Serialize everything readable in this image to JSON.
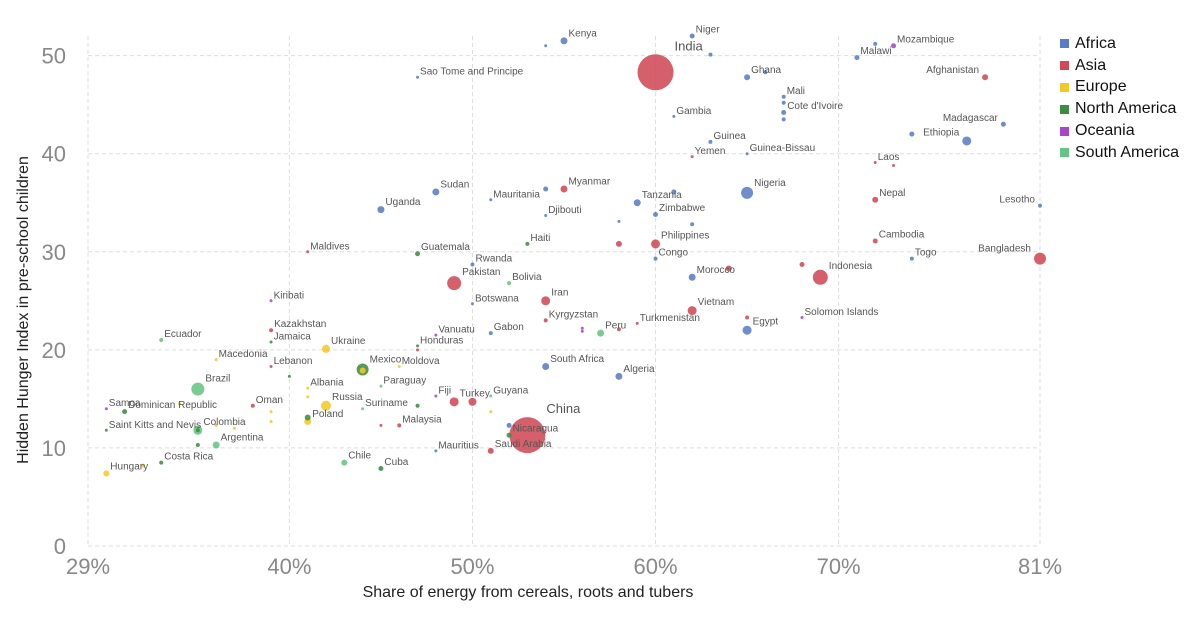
{
  "chart_data": {
    "type": "scatter",
    "xlabel": "Share of energy from cereals, roots and tubers",
    "ylabel": "Hidden Hunger Index in pre-school children",
    "xlim": [
      29,
      81
    ],
    "ylim": [
      0,
      52
    ],
    "x_ticks": [
      "29%",
      "40%",
      "50%",
      "60%",
      "70%",
      "81%"
    ],
    "x_tick_values": [
      29,
      40,
      50,
      60,
      70,
      81
    ],
    "y_ticks": [
      "0",
      "10",
      "20",
      "30",
      "40",
      "50"
    ],
    "y_tick_values": [
      0,
      10,
      20,
      30,
      40,
      50
    ],
    "grid": true,
    "legend_position": "top-right",
    "series": [
      {
        "name": "Africa",
        "color": "#5b7cc4"
      },
      {
        "name": "Asia",
        "color": "#cf4a57"
      },
      {
        "name": "Europe",
        "color": "#f5c829"
      },
      {
        "name": "North America",
        "color": "#3e8c41"
      },
      {
        "name": "Oceania",
        "color": "#a646c9"
      },
      {
        "name": "South America",
        "color": "#66c482"
      }
    ],
    "points": [
      {
        "label": "Kenya",
        "x": 55,
        "y": 51.5,
        "s": 7,
        "g": "Africa"
      },
      {
        "label": "Niger",
        "x": 62,
        "y": 52,
        "s": 5,
        "g": "Africa"
      },
      {
        "label": "",
        "x": 63,
        "y": 50.1,
        "s": 4,
        "g": "Africa"
      },
      {
        "label": "India",
        "x": 60,
        "y": 48.3,
        "s": 36,
        "g": "Asia"
      },
      {
        "label": "Malawi",
        "x": 71,
        "y": 49.8,
        "s": 5,
        "g": "Africa"
      },
      {
        "label": "",
        "x": 72,
        "y": 51.2,
        "s": 4,
        "g": "Africa"
      },
      {
        "label": "Mozambique",
        "x": 73,
        "y": 51,
        "s": 5,
        "g": "Oceania"
      },
      {
        "label": "Sao Tome and Principe",
        "x": 47,
        "y": 47.8,
        "s": 3,
        "g": "Africa"
      },
      {
        "label": "",
        "x": 54,
        "y": 51,
        "s": 3,
        "g": "Africa"
      },
      {
        "label": "Ghana",
        "x": 65,
        "y": 47.8,
        "s": 6,
        "g": "Africa"
      },
      {
        "label": "",
        "x": 66,
        "y": 48.3,
        "s": 4,
        "g": "Africa"
      },
      {
        "label": "Afghanistan",
        "x": 78,
        "y": 47.8,
        "s": 6,
        "g": "Asia"
      },
      {
        "label": "Mali",
        "x": 67,
        "y": 45.8,
        "s": 4,
        "g": "Africa"
      },
      {
        "label": "",
        "x": 67,
        "y": 45.2,
        "s": 4,
        "g": "Africa"
      },
      {
        "label": "Cote d'Ivoire",
        "x": 67,
        "y": 44.2,
        "s": 5,
        "g": "Africa"
      },
      {
        "label": "",
        "x": 67,
        "y": 43.5,
        "s": 4,
        "g": "Africa"
      },
      {
        "label": "Gambia",
        "x": 61,
        "y": 43.8,
        "s": 3,
        "g": "Africa"
      },
      {
        "label": "Madagascar",
        "x": 79,
        "y": 43,
        "s": 5,
        "g": "Africa"
      },
      {
        "label": "",
        "x": 74,
        "y": 42,
        "s": 5,
        "g": "Africa"
      },
      {
        "label": "Ethiopia",
        "x": 77,
        "y": 41.3,
        "s": 9,
        "g": "Africa"
      },
      {
        "label": "Guinea",
        "x": 63,
        "y": 41.2,
        "s": 4,
        "g": "Africa"
      },
      {
        "label": "Yemen",
        "x": 62,
        "y": 39.7,
        "s": 3,
        "g": "Asia"
      },
      {
        "label": "Guinea-Bissau",
        "x": 65,
        "y": 40,
        "s": 3,
        "g": "Africa"
      },
      {
        "label": "Laos",
        "x": 72,
        "y": 39.1,
        "s": 3,
        "g": "Asia"
      },
      {
        "label": "",
        "x": 73,
        "y": 38.8,
        "s": 3,
        "g": "Asia"
      },
      {
        "label": "Sudan",
        "x": 48,
        "y": 36.1,
        "s": 7,
        "g": "Africa"
      },
      {
        "label": "Myanmar",
        "x": 55,
        "y": 36.4,
        "s": 7,
        "g": "Asia"
      },
      {
        "label": "",
        "x": 54,
        "y": 36.4,
        "s": 5,
        "g": "Africa"
      },
      {
        "label": "Mauritania",
        "x": 51,
        "y": 35.3,
        "s": 3,
        "g": "Africa"
      },
      {
        "label": "Nigeria",
        "x": 65,
        "y": 36,
        "s": 12,
        "g": "Africa"
      },
      {
        "label": "",
        "x": 61,
        "y": 36.1,
        "s": 5,
        "g": "Africa"
      },
      {
        "label": "Tanzania",
        "x": 59,
        "y": 35,
        "s": 7,
        "g": "Africa"
      },
      {
        "label": "Uganda",
        "x": 45,
        "y": 34.3,
        "s": 7,
        "g": "Africa"
      },
      {
        "label": "Djibouti",
        "x": 54,
        "y": 33.7,
        "s": 3,
        "g": "Africa"
      },
      {
        "label": "Zimbabwe",
        "x": 60,
        "y": 33.8,
        "s": 5,
        "g": "Africa"
      },
      {
        "label": "",
        "x": 58,
        "y": 33.1,
        "s": 3,
        "g": "Africa"
      },
      {
        "label": "",
        "x": 62,
        "y": 32.8,
        "s": 4,
        "g": "Africa"
      },
      {
        "label": "Nepal",
        "x": 72,
        "y": 35.3,
        "s": 6,
        "g": "Asia"
      },
      {
        "label": "Lesotho",
        "x": 81,
        "y": 34.7,
        "s": 4,
        "g": "Africa"
      },
      {
        "label": "Haiti",
        "x": 53,
        "y": 30.8,
        "s": 4,
        "g": "North America"
      },
      {
        "label": "",
        "x": 58,
        "y": 30.8,
        "s": 6,
        "g": "Asia"
      },
      {
        "label": "Philippines",
        "x": 60,
        "y": 30.8,
        "s": 9,
        "g": "Asia"
      },
      {
        "label": "Cambodia",
        "x": 72,
        "y": 31.1,
        "s": 5,
        "g": "Asia"
      },
      {
        "label": "Maldives",
        "x": 41,
        "y": 30,
        "s": 3,
        "g": "Asia"
      },
      {
        "label": "Guatemala",
        "x": 47,
        "y": 29.8,
        "s": 5,
        "g": "North America"
      },
      {
        "label": "Congo",
        "x": 60,
        "y": 29.3,
        "s": 4,
        "g": "Africa"
      },
      {
        "label": "Bangladesh",
        "x": 81,
        "y": 29.3,
        "s": 12,
        "g": "Asia"
      },
      {
        "label": "Togo",
        "x": 74,
        "y": 29.3,
        "s": 4,
        "g": "Africa"
      },
      {
        "label": "Rwanda",
        "x": 50,
        "y": 28.7,
        "s": 4,
        "g": "Africa"
      },
      {
        "label": "Indonesia",
        "x": 69,
        "y": 27.4,
        "s": 15,
        "g": "Asia"
      },
      {
        "label": "",
        "x": 68,
        "y": 28.7,
        "s": 5,
        "g": "Asia"
      },
      {
        "label": "Morocco",
        "x": 62,
        "y": 27.4,
        "s": 7,
        "g": "Africa"
      },
      {
        "label": "",
        "x": 64,
        "y": 28.3,
        "s": 6,
        "g": "Asia"
      },
      {
        "label": "Pakistan",
        "x": 49,
        "y": 26.8,
        "s": 14,
        "g": "Asia"
      },
      {
        "label": "Bolivia",
        "x": 52,
        "y": 26.8,
        "s": 4,
        "g": "South America"
      },
      {
        "label": "Kiribati",
        "x": 39,
        "y": 25,
        "s": 3,
        "g": "Oceania"
      },
      {
        "label": "Botswana",
        "x": 50,
        "y": 24.7,
        "s": 3,
        "g": "Africa"
      },
      {
        "label": "Iran",
        "x": 54,
        "y": 25,
        "s": 9,
        "g": "Asia"
      },
      {
        "label": "Vietnam",
        "x": 62,
        "y": 24,
        "s": 9,
        "g": "Asia"
      },
      {
        "label": "Solomon Islands",
        "x": 68,
        "y": 23.3,
        "s": 3,
        "g": "Oceania"
      },
      {
        "label": "Kyrgyzstan",
        "x": 54,
        "y": 23,
        "s": 4,
        "g": "Asia"
      },
      {
        "label": "Turkmenistan",
        "x": 59,
        "y": 22.7,
        "s": 3,
        "g": "Asia"
      },
      {
        "label": "",
        "x": 65,
        "y": 23.3,
        "s": 4,
        "g": "Asia"
      },
      {
        "label": "Egypt",
        "x": 65,
        "y": 22,
        "s": 9,
        "g": "Africa"
      },
      {
        "label": "",
        "x": 56,
        "y": 22.2,
        "s": 3,
        "g": "Oceania"
      },
      {
        "label": "",
        "x": 56,
        "y": 21.9,
        "s": 3,
        "g": "Oceania"
      },
      {
        "label": "Peru",
        "x": 57,
        "y": 21.7,
        "s": 7,
        "g": "South America"
      },
      {
        "label": "",
        "x": 58,
        "y": 22.1,
        "s": 4,
        "g": "Asia"
      },
      {
        "label": "Kazakhstan",
        "x": 39,
        "y": 22,
        "s": 4,
        "g": "Asia"
      },
      {
        "label": "Jamaica",
        "x": 39,
        "y": 20.8,
        "s": 3,
        "g": "North America"
      },
      {
        "label": "Vanuatu",
        "x": 48,
        "y": 21.5,
        "s": 3,
        "g": "Oceania"
      },
      {
        "label": "Gabon",
        "x": 51,
        "y": 21.7,
        "s": 4,
        "g": "Africa"
      },
      {
        "label": "Ecuador",
        "x": 33,
        "y": 21,
        "s": 4,
        "g": "South America"
      },
      {
        "label": "Honduras",
        "x": 47,
        "y": 20.4,
        "s": 3,
        "g": "North America"
      },
      {
        "label": "",
        "x": 47,
        "y": 20,
        "s": 3,
        "g": "Asia"
      },
      {
        "label": "Ukraine",
        "x": 42,
        "y": 20.1,
        "s": 8,
        "g": "Europe"
      },
      {
        "label": "Macedonia",
        "x": 36,
        "y": 19,
        "s": 3,
        "g": "Europe"
      },
      {
        "label": "Lebanon",
        "x": 39,
        "y": 18.3,
        "s": 3,
        "g": "Asia"
      },
      {
        "label": "Mexico",
        "x": 44,
        "y": 18,
        "s": 12,
        "g": "North America"
      },
      {
        "label": "",
        "x": 44,
        "y": 17.9,
        "s": 6,
        "g": "Europe"
      },
      {
        "label": "Moldova",
        "x": 46,
        "y": 18.3,
        "s": 3,
        "g": "Europe"
      },
      {
        "label": "South Africa",
        "x": 54,
        "y": 18.3,
        "s": 7,
        "g": "Africa"
      },
      {
        "label": "Algeria",
        "x": 58,
        "y": 17.3,
        "s": 7,
        "g": "Africa"
      },
      {
        "label": "",
        "x": 40,
        "y": 17.3,
        "s": 3,
        "g": "North America"
      },
      {
        "label": "Brazil",
        "x": 35,
        "y": 16,
        "s": 13,
        "g": "South America"
      },
      {
        "label": "Albania",
        "x": 41,
        "y": 16.1,
        "s": 3,
        "g": "Europe"
      },
      {
        "label": "",
        "x": 41,
        "y": 15.2,
        "s": 3,
        "g": "Europe"
      },
      {
        "label": "Paraguay",
        "x": 45,
        "y": 16.3,
        "s": 3,
        "g": "South America"
      },
      {
        "label": "Russia",
        "x": 42,
        "y": 14.3,
        "s": 10,
        "g": "Europe"
      },
      {
        "label": "Fiji",
        "x": 48,
        "y": 15.3,
        "s": 3,
        "g": "Oceania"
      },
      {
        "label": "Guyana",
        "x": 51,
        "y": 15.3,
        "s": 3,
        "g": "South America"
      },
      {
        "label": "Turkey",
        "x": 49,
        "y": 14.7,
        "s": 9,
        "g": "Asia"
      },
      {
        "label": "",
        "x": 50,
        "y": 14.7,
        "s": 8,
        "g": "Asia"
      },
      {
        "label": "Samoa",
        "x": 30,
        "y": 14,
        "s": 3,
        "g": "Oceania"
      },
      {
        "label": "Dominican Republic",
        "x": 31,
        "y": 13.7,
        "s": 5,
        "g": "North America"
      },
      {
        "label": "",
        "x": 34,
        "y": 14.5,
        "s": 3,
        "g": "Europe"
      },
      {
        "label": "Oman",
        "x": 38,
        "y": 14.3,
        "s": 4,
        "g": "Asia"
      },
      {
        "label": "Suriname",
        "x": 44,
        "y": 14,
        "s": 3,
        "g": "South America"
      },
      {
        "label": "",
        "x": 47,
        "y": 14.3,
        "s": 4,
        "g": "North America"
      },
      {
        "label": "",
        "x": 51,
        "y": 13.7,
        "s": 3,
        "g": "Europe"
      },
      {
        "label": "Poland",
        "x": 41,
        "y": 12.7,
        "s": 7,
        "g": "Europe"
      },
      {
        "label": "",
        "x": 41,
        "y": 13.1,
        "s": 6,
        "g": "North America"
      },
      {
        "label": "",
        "x": 39,
        "y": 13.7,
        "s": 3,
        "g": "Europe"
      },
      {
        "label": "",
        "x": 39,
        "y": 12.7,
        "s": 3,
        "g": "Europe"
      },
      {
        "label": "Malaysia",
        "x": 46,
        "y": 12.3,
        "s": 4,
        "g": "Asia"
      },
      {
        "label": "",
        "x": 45,
        "y": 12.3,
        "s": 3,
        "g": "Asia"
      },
      {
        "label": "Saint Kitts and Nevis",
        "x": 30,
        "y": 11.8,
        "s": 3,
        "g": "North America"
      },
      {
        "label": "Colombia",
        "x": 35,
        "y": 11.8,
        "s": 9,
        "g": "South America"
      },
      {
        "label": "",
        "x": 35,
        "y": 11.8,
        "s": 4,
        "g": "North America"
      },
      {
        "label": "",
        "x": 36,
        "y": 12.3,
        "s": 3,
        "g": "Europe"
      },
      {
        "label": "",
        "x": 37,
        "y": 12,
        "s": 3,
        "g": "Europe"
      },
      {
        "label": "China",
        "x": 53,
        "y": 11.3,
        "s": 36,
        "g": "Asia"
      },
      {
        "label": "Nicaragua",
        "x": 52,
        "y": 11.3,
        "s": 5,
        "g": "North America"
      },
      {
        "label": "",
        "x": 52,
        "y": 12.3,
        "s": 5,
        "g": "Africa"
      },
      {
        "label": "Argentina",
        "x": 36,
        "y": 10.3,
        "s": 7,
        "g": "South America"
      },
      {
        "label": "",
        "x": 35,
        "y": 10.3,
        "s": 4,
        "g": "North America"
      },
      {
        "label": "Mauritius",
        "x": 48,
        "y": 9.7,
        "s": 3,
        "g": "Africa"
      },
      {
        "label": "Saudi Arabia",
        "x": 51,
        "y": 9.7,
        "s": 6,
        "g": "Asia"
      },
      {
        "label": "Costa Rica",
        "x": 33,
        "y": 8.5,
        "s": 4,
        "g": "North America"
      },
      {
        "label": "Chile",
        "x": 43,
        "y": 8.5,
        "s": 6,
        "g": "South America"
      },
      {
        "label": "Cuba",
        "x": 45,
        "y": 7.9,
        "s": 5,
        "g": "North America"
      },
      {
        "label": "Hungary",
        "x": 30,
        "y": 7.4,
        "s": 6,
        "g": "Europe"
      },
      {
        "label": "",
        "x": 32,
        "y": 8.2,
        "s": 4,
        "g": "Europe"
      }
    ]
  }
}
